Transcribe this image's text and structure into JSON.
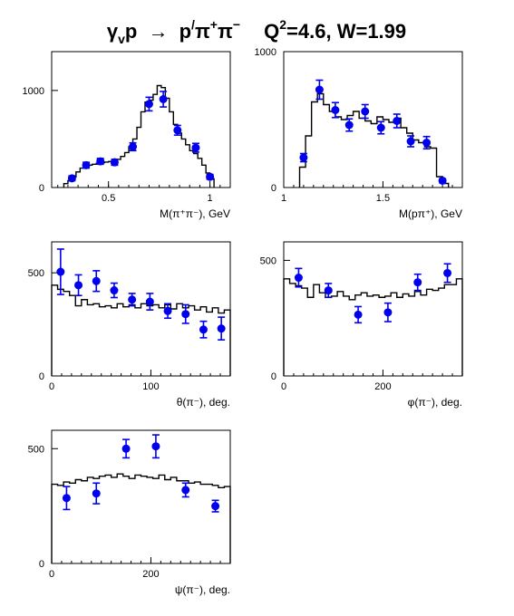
{
  "title": {
    "gamma": "γ",
    "gamma_sub": "v",
    "p": "p",
    "arrow": "→",
    "pprime": "p",
    "prime": "/",
    "pi": "π",
    "plus": "+",
    "pi2": "π",
    "minus": "−",
    "q2": "Q",
    "q2_exp": "2",
    "q2_val": "=4.6, W=1.99"
  },
  "colors": {
    "data": "#0000ee",
    "histogram": "#000000",
    "frame": "#000000"
  },
  "chart_data": [
    {
      "id": "m-pipi",
      "type": "scatter",
      "xlabel": "M(π⁺π⁻), GeV",
      "xlim": [
        0.22,
        1.1
      ],
      "ylim": [
        0,
        1400
      ],
      "xticks": [
        {
          "v": 0.5,
          "label": "0.5"
        },
        {
          "v": 1,
          "label": "1"
        }
      ],
      "yticks": [
        {
          "v": 0,
          "label": "0"
        },
        {
          "v": 1000,
          "label": "1000"
        }
      ],
      "xminor_step": 0.05,
      "points": [
        {
          "x": 0.32,
          "y": 95,
          "err": 25
        },
        {
          "x": 0.39,
          "y": 230,
          "err": 30
        },
        {
          "x": 0.46,
          "y": 270,
          "err": 30
        },
        {
          "x": 0.53,
          "y": 260,
          "err": 30
        },
        {
          "x": 0.62,
          "y": 420,
          "err": 40
        },
        {
          "x": 0.7,
          "y": 860,
          "err": 70
        },
        {
          "x": 0.77,
          "y": 910,
          "err": 80
        },
        {
          "x": 0.84,
          "y": 590,
          "err": 50
        },
        {
          "x": 0.93,
          "y": 410,
          "err": 45
        },
        {
          "x": 1.0,
          "y": 110,
          "err": 25
        }
      ],
      "histogram": {
        "edges": [
          0.28,
          0.3,
          0.32,
          0.34,
          0.36,
          0.38,
          0.4,
          0.42,
          0.44,
          0.46,
          0.48,
          0.5,
          0.52,
          0.54,
          0.56,
          0.58,
          0.6,
          0.62,
          0.64,
          0.66,
          0.68,
          0.7,
          0.72,
          0.74,
          0.76,
          0.78,
          0.8,
          0.82,
          0.84,
          0.86,
          0.88,
          0.9,
          0.92,
          0.94,
          0.96,
          0.98,
          1.0,
          1.02
        ],
        "values": [
          40,
          70,
          110,
          160,
          200,
          220,
          230,
          240,
          250,
          255,
          262,
          268,
          275,
          290,
          320,
          360,
          420,
          500,
          620,
          780,
          880,
          900,
          960,
          1050,
          1030,
          920,
          780,
          650,
          560,
          500,
          440,
          380,
          350,
          300,
          230,
          150,
          90
        ]
      }
    },
    {
      "id": "m-ppi",
      "type": "scatter",
      "xlabel": "M(pπ⁺), GeV",
      "xlim": [
        1.0,
        1.9
      ],
      "ylim": [
        0,
        1000
      ],
      "xticks": [
        {
          "v": 1,
          "label": "1"
        },
        {
          "v": 1.5,
          "label": "1.5"
        }
      ],
      "yticks": [
        {
          "v": 0,
          "label": "0"
        },
        {
          "v": 1000,
          "label": "1000"
        }
      ],
      "xminor_step": 0.05,
      "points": [
        {
          "x": 1.1,
          "y": 220,
          "err": 30
        },
        {
          "x": 1.18,
          "y": 720,
          "err": 70
        },
        {
          "x": 1.26,
          "y": 570,
          "err": 55
        },
        {
          "x": 1.33,
          "y": 460,
          "err": 45
        },
        {
          "x": 1.41,
          "y": 560,
          "err": 50
        },
        {
          "x": 1.49,
          "y": 440,
          "err": 45
        },
        {
          "x": 1.57,
          "y": 490,
          "err": 50
        },
        {
          "x": 1.64,
          "y": 340,
          "err": 40
        },
        {
          "x": 1.72,
          "y": 330,
          "err": 45
        },
        {
          "x": 1.8,
          "y": 50,
          "err": 15
        }
      ],
      "histogram": {
        "edges": [
          1.08,
          1.11,
          1.14,
          1.17,
          1.2,
          1.23,
          1.26,
          1.29,
          1.32,
          1.35,
          1.38,
          1.41,
          1.44,
          1.47,
          1.5,
          1.53,
          1.56,
          1.59,
          1.62,
          1.65,
          1.68,
          1.71,
          1.74,
          1.77,
          1.8,
          1.83
        ],
        "values": [
          150,
          380,
          630,
          690,
          610,
          560,
          520,
          500,
          530,
          560,
          510,
          490,
          470,
          520,
          500,
          480,
          510,
          440,
          400,
          350,
          330,
          300,
          290,
          80,
          30
        ]
      }
    },
    {
      "id": "theta-pi",
      "type": "scatter",
      "xlabel": "θ(π⁻), deg.",
      "xlim": [
        0,
        180
      ],
      "ylim": [
        0,
        650
      ],
      "xticks": [
        {
          "v": 0,
          "label": "0"
        },
        {
          "v": 100,
          "label": "100"
        }
      ],
      "yticks": [
        {
          "v": 0,
          "label": "0"
        },
        {
          "v": 500,
          "label": "500"
        }
      ],
      "xminor_step": 10,
      "points": [
        {
          "x": 9,
          "y": 505,
          "err": 110
        },
        {
          "x": 27,
          "y": 440,
          "err": 50
        },
        {
          "x": 45,
          "y": 460,
          "err": 50
        },
        {
          "x": 63,
          "y": 415,
          "err": 35
        },
        {
          "x": 81,
          "y": 370,
          "err": 30
        },
        {
          "x": 99,
          "y": 360,
          "err": 40
        },
        {
          "x": 117,
          "y": 315,
          "err": 35
        },
        {
          "x": 135,
          "y": 300,
          "err": 45
        },
        {
          "x": 153,
          "y": 225,
          "err": 40
        },
        {
          "x": 171,
          "y": 230,
          "err": 55
        }
      ],
      "histogram": {
        "edges": [
          0,
          6,
          12,
          18,
          24,
          30,
          36,
          42,
          48,
          54,
          60,
          66,
          72,
          78,
          84,
          90,
          96,
          102,
          108,
          114,
          120,
          126,
          132,
          138,
          144,
          150,
          156,
          162,
          168,
          174,
          180
        ],
        "values": [
          440,
          420,
          410,
          390,
          340,
          370,
          345,
          350,
          335,
          340,
          330,
          350,
          335,
          345,
          330,
          350,
          340,
          345,
          330,
          345,
          325,
          350,
          330,
          340,
          320,
          335,
          310,
          330,
          305,
          320
        ]
      }
    },
    {
      "id": "phi-pi",
      "type": "scatter",
      "xlabel": "φ(π⁻), deg.",
      "xlim": [
        0,
        360
      ],
      "ylim": [
        0,
        580
      ],
      "xticks": [
        {
          "v": 0,
          "label": "0"
        },
        {
          "v": 200,
          "label": "200"
        }
      ],
      "yticks": [
        {
          "v": 0,
          "label": "0"
        },
        {
          "v": 500,
          "label": "500"
        }
      ],
      "xminor_step": 20,
      "points": [
        {
          "x": 30,
          "y": 425,
          "err": 40
        },
        {
          "x": 90,
          "y": 370,
          "err": 30
        },
        {
          "x": 150,
          "y": 265,
          "err": 35
        },
        {
          "x": 210,
          "y": 275,
          "err": 40
        },
        {
          "x": 270,
          "y": 405,
          "err": 35
        },
        {
          "x": 330,
          "y": 445,
          "err": 40
        }
      ],
      "histogram": {
        "edges": [
          0,
          12,
          24,
          36,
          48,
          60,
          72,
          84,
          96,
          108,
          120,
          132,
          144,
          156,
          168,
          180,
          192,
          204,
          216,
          228,
          240,
          252,
          264,
          276,
          288,
          300,
          312,
          324,
          336,
          348,
          360
        ],
        "values": [
          420,
          400,
          390,
          380,
          340,
          395,
          360,
          340,
          345,
          365,
          345,
          330,
          350,
          360,
          345,
          350,
          340,
          345,
          360,
          340,
          355,
          345,
          365,
          350,
          375,
          370,
          380,
          395,
          395,
          420
        ]
      }
    },
    {
      "id": "psi-pi",
      "type": "scatter",
      "xlabel": "ψ(π⁻), deg.",
      "xlim": [
        0,
        360
      ],
      "ylim": [
        0,
        580
      ],
      "xticks": [
        {
          "v": 0,
          "label": "0"
        },
        {
          "v": 200,
          "label": "200"
        }
      ],
      "yticks": [
        {
          "v": 0,
          "label": "0"
        },
        {
          "v": 500,
          "label": "500"
        }
      ],
      "xminor_step": 20,
      "points": [
        {
          "x": 30,
          "y": 285,
          "err": 50
        },
        {
          "x": 90,
          "y": 305,
          "err": 45
        },
        {
          "x": 150,
          "y": 500,
          "err": 40
        },
        {
          "x": 210,
          "y": 510,
          "err": 50
        },
        {
          "x": 270,
          "y": 320,
          "err": 30
        },
        {
          "x": 330,
          "y": 250,
          "err": 25
        }
      ],
      "histogram": {
        "edges": [
          0,
          12,
          24,
          36,
          48,
          60,
          72,
          84,
          96,
          108,
          120,
          132,
          144,
          156,
          168,
          180,
          192,
          204,
          216,
          228,
          240,
          252,
          264,
          276,
          288,
          300,
          312,
          324,
          336,
          348,
          360
        ],
        "values": [
          345,
          340,
          355,
          350,
          365,
          360,
          375,
          370,
          380,
          385,
          375,
          390,
          380,
          370,
          385,
          380,
          375,
          370,
          385,
          365,
          375,
          360,
          360,
          350,
          355,
          345,
          345,
          340,
          330,
          335
        ]
      }
    }
  ]
}
